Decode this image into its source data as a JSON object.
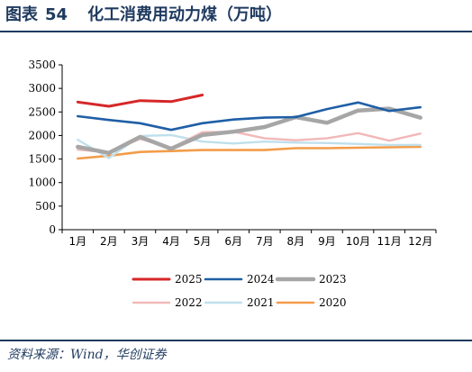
{
  "header": {
    "label": "图表",
    "number": "54",
    "title": "化工消费用动力煤（万吨）"
  },
  "source": "资料来源：Wind，华创证券",
  "chart_data": {
    "type": "line",
    "categories": [
      "1月",
      "2月",
      "3月",
      "4月",
      "5月",
      "6月",
      "7月",
      "8月",
      "9月",
      "10月",
      "11月",
      "12月"
    ],
    "ylim": [
      0,
      3500
    ],
    "yticks": [
      0,
      500,
      1000,
      1500,
      2000,
      2500,
      3000,
      3500
    ],
    "legend_position": "bottom",
    "series": [
      {
        "name": "2025",
        "color": "#d62728",
        "width": 3.0,
        "values": [
          2710,
          2620,
          2740,
          2720,
          2860,
          null,
          null,
          null,
          null,
          null,
          null,
          null
        ]
      },
      {
        "name": "2024",
        "color": "#1f5fa6",
        "width": 2.6,
        "values": [
          2410,
          2330,
          2260,
          2120,
          2260,
          2340,
          2380,
          2390,
          2560,
          2700,
          2520,
          2600
        ]
      },
      {
        "name": "2023",
        "color": "#a6a6a6",
        "width": 4.5,
        "values": [
          1760,
          1630,
          1970,
          1720,
          2010,
          2080,
          2180,
          2390,
          2270,
          2530,
          2570,
          2380
        ]
      },
      {
        "name": "2022",
        "color": "#f2b8b8",
        "width": 2.4,
        "values": [
          1700,
          1640,
          1930,
          1730,
          2070,
          2080,
          1940,
          1900,
          1940,
          2050,
          1890,
          2040
        ]
      },
      {
        "name": "2021",
        "color": "#bfe0ec",
        "width": 2.4,
        "values": [
          1910,
          1520,
          1990,
          2010,
          1870,
          1830,
          1870,
          1850,
          1840,
          1820,
          1800,
          1800
        ]
      },
      {
        "name": "2020",
        "color": "#f39c4a",
        "width": 2.6,
        "values": [
          1510,
          1570,
          1650,
          1670,
          1690,
          1690,
          1690,
          1730,
          1730,
          1740,
          1750,
          1760
        ]
      }
    ]
  }
}
